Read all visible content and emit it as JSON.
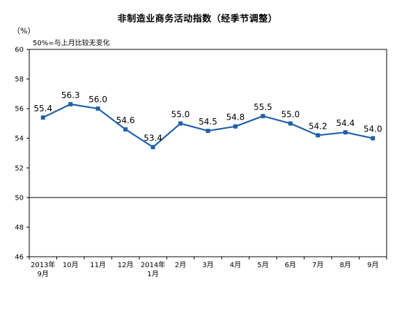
{
  "title": "非制造业商务活动指数（经季节调整）",
  "unit": "（%）",
  "note": "50%=与上月比较无变化",
  "colors": {
    "series": "#1f5fa8",
    "frame": "#000000",
    "reference_line": "#000000"
  },
  "chart_data": {
    "type": "line",
    "title": "非制造业商务活动指数（经季节调整）",
    "ylabel": "（%）",
    "xlabel": "",
    "categories": [
      [
        "2013年",
        "9月"
      ],
      [
        "10月"
      ],
      [
        "11月"
      ],
      [
        "12月"
      ],
      [
        "2014年",
        "1月"
      ],
      [
        "2月"
      ],
      [
        "3月"
      ],
      [
        "4月"
      ],
      [
        "5月"
      ],
      [
        "6月"
      ],
      [
        "7月"
      ],
      [
        "8月"
      ],
      [
        "9月"
      ]
    ],
    "values": [
      55.4,
      56.3,
      56.0,
      54.6,
      53.4,
      55.0,
      54.5,
      54.8,
      55.5,
      55.0,
      54.2,
      54.4,
      54.0
    ],
    "data_labels": [
      "55.4",
      "56.3",
      "56.0",
      "54.6",
      "53.4",
      "55.0",
      "54.5",
      "54.8",
      "55.5",
      "55.0",
      "54.2",
      "54.4",
      "54.0"
    ],
    "ylim": [
      46,
      60
    ],
    "yticks": [
      46,
      48,
      50,
      52,
      54,
      56,
      58,
      60
    ],
    "reference_line": 50,
    "grid": false,
    "legend": "none",
    "marker": "square"
  }
}
